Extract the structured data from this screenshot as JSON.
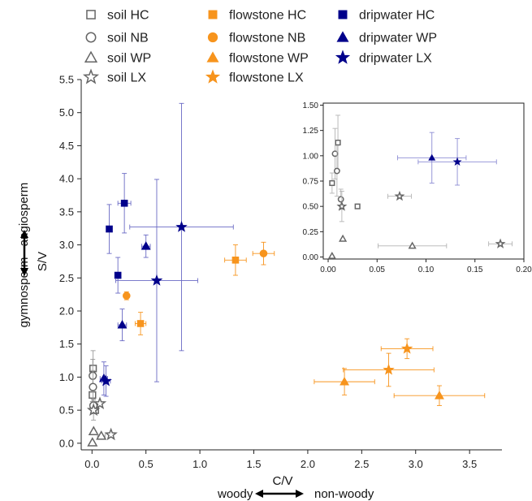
{
  "chart_data": {
    "type": "scatter",
    "title": "",
    "xlabel": "C/V",
    "ylabel": "S/V",
    "x_annotation": {
      "left": "woody",
      "right": "non-woody"
    },
    "y_annotation": {
      "bottom": "gymnosperm",
      "top": "angiosperm"
    },
    "xlim": [
      -0.1,
      3.8
    ],
    "ylim": [
      -0.1,
      5.5
    ],
    "xticks": [
      0.0,
      0.5,
      1.0,
      1.5,
      2.0,
      2.5,
      3.0,
      3.5
    ],
    "xtick_labels": [
      "0.0",
      "0.5",
      "1.0",
      "1.5",
      "2.0",
      "2.5",
      "3.0",
      "3.5"
    ],
    "yticks": [
      0.0,
      0.5,
      1.0,
      1.5,
      2.0,
      2.5,
      3.0,
      3.5,
      4.0,
      4.5,
      5.0,
      5.5
    ],
    "ytick_labels": [
      "0.0",
      "0.5",
      "1.0",
      "1.5",
      "2.0",
      "2.5",
      "3.0",
      "3.5",
      "4.0",
      "4.5",
      "5.0",
      "5.5"
    ],
    "legend_position": "top",
    "colors": {
      "soil": "#666666",
      "flowstone": "#f7941d",
      "dripwater": "#00008b"
    },
    "series": [
      {
        "name": "soil HC",
        "group": "soil",
        "marker": "square",
        "filled": false,
        "points": [
          {
            "x": 0.004,
            "y": 0.73,
            "ey": 0.1
          },
          {
            "x": 0.01,
            "y": 1.13,
            "ey": 0.27
          },
          {
            "x": 0.03,
            "y": 0.5
          }
        ]
      },
      {
        "name": "soil NB",
        "group": "soil",
        "marker": "circle",
        "filled": false,
        "points": [
          {
            "x": 0.007,
            "y": 1.02,
            "ey": 0.25
          },
          {
            "x": 0.009,
            "y": 0.85,
            "ey": 0.25
          },
          {
            "x": 0.013,
            "y": 0.57,
            "ey": 0.1
          }
        ]
      },
      {
        "name": "soil WP",
        "group": "soil",
        "marker": "triangle",
        "filled": false,
        "points": [
          {
            "x": 0.004,
            "y": 0.01
          },
          {
            "x": 0.015,
            "y": 0.18
          },
          {
            "x": 0.086,
            "y": 0.11,
            "ex": 0.035
          }
        ]
      },
      {
        "name": "soil LX",
        "group": "soil",
        "marker": "star",
        "filled": false,
        "points": [
          {
            "x": 0.014,
            "y": 0.5,
            "ey": 0.15
          },
          {
            "x": 0.073,
            "y": 0.6,
            "ex": 0.012
          },
          {
            "x": 0.176,
            "y": 0.13,
            "ex": 0.012
          }
        ]
      },
      {
        "name": "flowstone HC",
        "group": "flowstone",
        "marker": "square",
        "filled": true,
        "points": [
          {
            "x": 0.45,
            "y": 1.81,
            "ex": 0.05,
            "ey": 0.17
          },
          {
            "x": 1.33,
            "y": 2.77,
            "ex": 0.1,
            "ey": 0.23
          }
        ]
      },
      {
        "name": "flowstone NB",
        "group": "flowstone",
        "marker": "circle",
        "filled": true,
        "points": [
          {
            "x": 0.32,
            "y": 2.23,
            "ey": 0.06
          },
          {
            "x": 1.59,
            "y": 2.87,
            "ex": 0.1,
            "ey": 0.17
          }
        ]
      },
      {
        "name": "flowstone WP",
        "group": "flowstone",
        "marker": "triangle",
        "filled": true,
        "points": [
          {
            "x": 2.34,
            "y": 0.93,
            "ex": 0.28,
            "ey": 0.2
          },
          {
            "x": 3.22,
            "y": 0.72,
            "ex": 0.42,
            "ey": 0.15
          }
        ]
      },
      {
        "name": "flowstone LX",
        "group": "flowstone",
        "marker": "star",
        "filled": true,
        "points": [
          {
            "x": 2.75,
            "y": 1.11,
            "ex": 0.42,
            "ey": 0.25
          },
          {
            "x": 2.92,
            "y": 1.43,
            "ex": 0.24,
            "ey": 0.15
          }
        ]
      },
      {
        "name": "dripwater HC",
        "group": "dripwater",
        "marker": "square",
        "filled": true,
        "points": [
          {
            "x": 0.3,
            "y": 3.63,
            "ex": 0.06,
            "ey": 0.45
          },
          {
            "x": 0.16,
            "y": 3.24,
            "ey": 0.37
          },
          {
            "x": 0.24,
            "y": 2.54,
            "ey": 0.27
          }
        ]
      },
      {
        "name": "dripwater WP",
        "group": "dripwater",
        "marker": "triangle",
        "filled": true,
        "points": [
          {
            "x": 0.5,
            "y": 2.98,
            "ex": 0.04,
            "ey": 0.17
          },
          {
            "x": 0.28,
            "y": 1.79,
            "ex": 0.04,
            "ey": 0.24
          },
          {
            "x": 0.11,
            "y": 0.98,
            "ex": 0.035,
            "ey": 0.25
          }
        ]
      },
      {
        "name": "dripwater LX",
        "group": "dripwater",
        "marker": "star",
        "filled": true,
        "points": [
          {
            "x": 0.83,
            "y": 3.27,
            "ex": 0.48,
            "ey": 1.87
          },
          {
            "x": 0.6,
            "y": 2.46,
            "ex": 0.38,
            "ey": 1.53
          },
          {
            "x": 0.13,
            "y": 0.94,
            "ex": 0.04,
            "ey": 0.23
          }
        ]
      }
    ],
    "inset": {
      "xlim": [
        -0.005,
        0.2
      ],
      "ylim": [
        -0.02,
        1.52
      ],
      "xticks": [
        0.0,
        0.05,
        0.1,
        0.15,
        0.2
      ],
      "xtick_labels": [
        "0.00",
        "0.05",
        "0.10",
        "0.15",
        "0.20"
      ],
      "yticks": [
        0.0,
        0.25,
        0.5,
        0.75,
        1.0,
        1.25,
        1.5
      ],
      "ytick_labels": [
        "0.00",
        "0.25",
        "0.50",
        "0.75",
        "1.00",
        "1.25",
        "1.50"
      ],
      "series": [
        {
          "name": "soil HC",
          "group": "soil",
          "marker": "square",
          "filled": false,
          "points": [
            {
              "x": 0.004,
              "y": 0.73,
              "ey": 0.1
            },
            {
              "x": 0.01,
              "y": 1.13,
              "ey": 0.27
            },
            {
              "x": 0.03,
              "y": 0.5
            }
          ]
        },
        {
          "name": "soil NB",
          "group": "soil",
          "marker": "circle",
          "filled": false,
          "points": [
            {
              "x": 0.007,
              "y": 1.02,
              "ey": 0.25
            },
            {
              "x": 0.009,
              "y": 0.85,
              "ey": 0.25
            },
            {
              "x": 0.013,
              "y": 0.57,
              "ey": 0.1
            }
          ]
        },
        {
          "name": "soil WP",
          "group": "soil",
          "marker": "triangle",
          "filled": false,
          "points": [
            {
              "x": 0.004,
              "y": 0.01
            },
            {
              "x": 0.015,
              "y": 0.18
            },
            {
              "x": 0.086,
              "y": 0.11,
              "ex": 0.035
            }
          ]
        },
        {
          "name": "soil LX",
          "group": "soil",
          "marker": "star",
          "filled": false,
          "points": [
            {
              "x": 0.014,
              "y": 0.5,
              "ey": 0.15
            },
            {
              "x": 0.073,
              "y": 0.6,
              "ex": 0.012
            },
            {
              "x": 0.176,
              "y": 0.13,
              "ex": 0.012
            }
          ]
        },
        {
          "name": "dripwater WP",
          "group": "dripwater",
          "marker": "triangle",
          "filled": true,
          "points": [
            {
              "x": 0.106,
              "y": 0.98,
              "ex": 0.035,
              "ey": 0.25
            }
          ]
        },
        {
          "name": "dripwater LX",
          "group": "dripwater",
          "marker": "star",
          "filled": true,
          "points": [
            {
              "x": 0.132,
              "y": 0.94,
              "ex": 0.04,
              "ey": 0.23
            }
          ]
        }
      ]
    }
  }
}
